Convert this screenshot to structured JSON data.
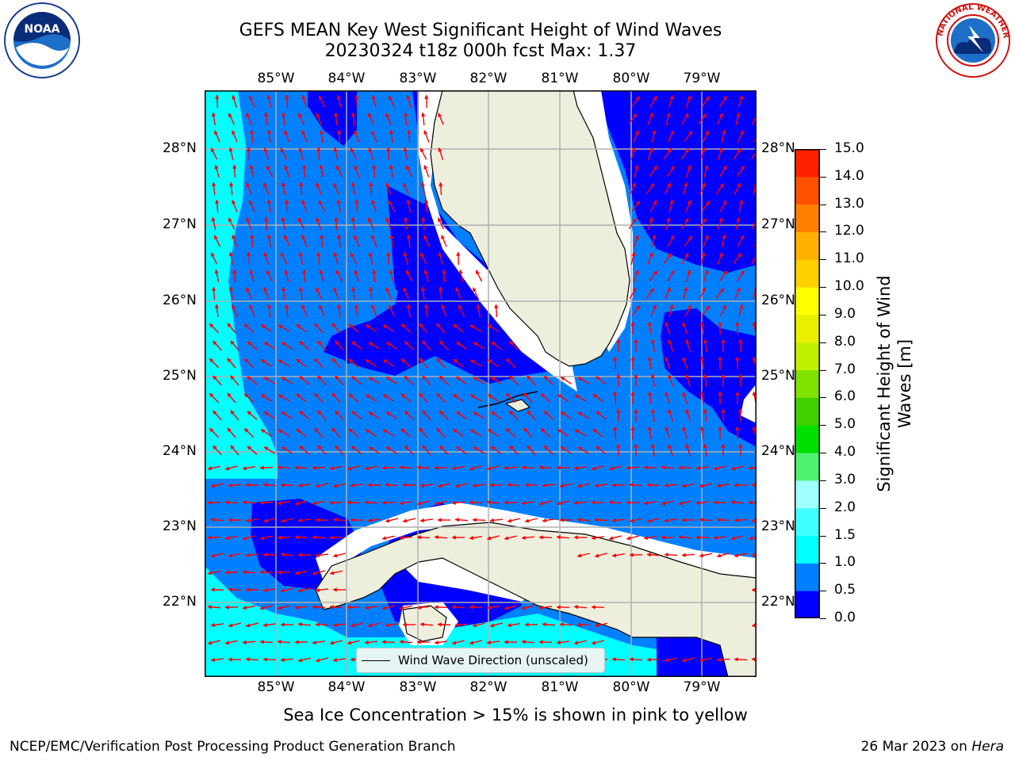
{
  "title": {
    "line1": "GEFS MEAN Key West Significant Height of Wind Waves",
    "line2": "20230324 t18z 000h fcst   Max: 1.37"
  },
  "logos": {
    "left_text": "NOAA",
    "left_ring": "NATIONAL OCEANIC AND ATMOSPHERIC ADMINISTRATION · U.S. DEPARTMENT OF COMMERCE",
    "right_ring": "NATIONAL WEATHER SERVICE"
  },
  "map": {
    "lon_labels": [
      "85°W",
      "84°W",
      "83°W",
      "82°W",
      "81°W",
      "80°W",
      "79°W"
    ],
    "lat_labels": [
      "28°N",
      "27°N",
      "26°N",
      "25°N",
      "24°N",
      "23°N",
      "22°N"
    ],
    "legend_label": "Wind Wave Direction (unscaled)",
    "colors": {
      "land": "#eeeedd",
      "arrow": "#ff0000",
      "grid": "#b0b0b0"
    }
  },
  "colorbar": {
    "label": "Significant Height of Wind Waves [m]",
    "ticks": [
      "0.0",
      "0.5",
      "1.0",
      "1.5",
      "2.0",
      "3.0",
      "4.0",
      "5.0",
      "6.0",
      "7.0",
      "8.0",
      "9.0",
      "10.0",
      "11.0",
      "12.0",
      "13.0",
      "14.0",
      "15.0"
    ],
    "colors": [
      "#0000ff",
      "#0080ff",
      "#00ffff",
      "#40ffff",
      "#a0ffff",
      "#50f070",
      "#00e000",
      "#40d000",
      "#80e000",
      "#c0f000",
      "#e8f000",
      "#ffff00",
      "#ffd000",
      "#ffb000",
      "#ff8000",
      "#ff5000",
      "#ff2000"
    ]
  },
  "note": "Sea Ice Concentration > 15% is shown in pink to yellow",
  "footer": {
    "left": "NCEP/EMC/Verification Post Processing Product Generation Branch",
    "right_prefix": "26 Mar 2023 on ",
    "right_host": "Hera"
  }
}
